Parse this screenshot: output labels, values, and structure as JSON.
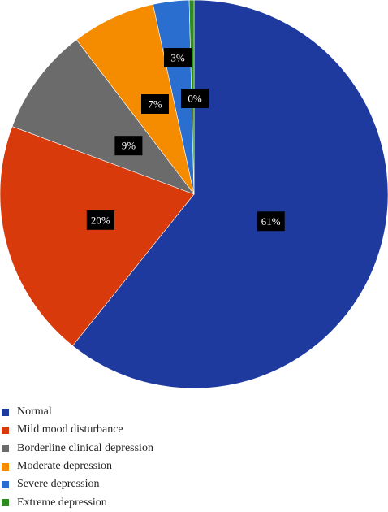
{
  "chart_data": {
    "type": "pie",
    "title": "",
    "slices": [
      {
        "label": "Normal",
        "value": 61,
        "display": "61%",
        "color": "#1f3a9e"
      },
      {
        "label": "Mild mood disturbance",
        "value": 20,
        "display": "20%",
        "color": "#d83a0c"
      },
      {
        "label": "Borderline clinical depression",
        "value": 9,
        "display": "9%",
        "color": "#6b6b6b"
      },
      {
        "label": "Moderate depression",
        "value": 7,
        "display": "7%",
        "color": "#f58c00"
      },
      {
        "label": "Severe depression",
        "value": 3,
        "display": "3%",
        "color": "#2a6fcf"
      },
      {
        "label": "Extreme depression",
        "value": 0.4,
        "display": "0%",
        "color": "#2e8b1e"
      }
    ],
    "legend": {
      "position": "bottom-left"
    },
    "start_angle": "12 o'clock",
    "direction": "clockwise",
    "label_style": "black boxes with white text"
  }
}
